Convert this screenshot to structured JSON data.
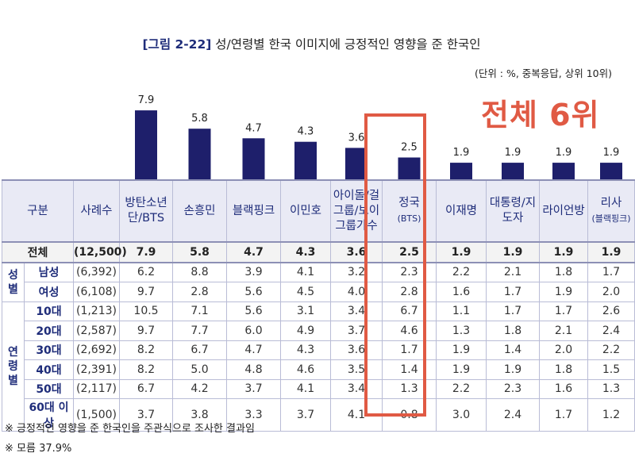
{
  "title": {
    "fig_label": "[그림 2-22]",
    "text": "성/연령별 한국 이미지에 긍정적인 영향을 준 한국인"
  },
  "unit_note": "(단위 : %, 중복응답, 상위 10위)",
  "highlight": {
    "label": "전체 6위",
    "column": "정국(BTS)",
    "color": "#e05a44"
  },
  "colors": {
    "bar": "#1e1f6b",
    "header_bg": "#e9eaf5",
    "accent_text": "#1f2d7a"
  },
  "table": {
    "headers": {
      "category": "구분",
      "cases": "사례수",
      "items": [
        {
          "label": "방탄소년단/BTS",
          "sub": ""
        },
        {
          "label": "손흥민",
          "sub": ""
        },
        {
          "label": "블랙핑크",
          "sub": ""
        },
        {
          "label": "이민호",
          "sub": ""
        },
        {
          "label": "아이돌/걸그룹/보이그룹가수",
          "sub": ""
        },
        {
          "label": "정국",
          "sub": "(BTS)"
        },
        {
          "label": "이재명",
          "sub": ""
        },
        {
          "label": "대통령/지도자",
          "sub": ""
        },
        {
          "label": "라이언방",
          "sub": ""
        },
        {
          "label": "리사",
          "sub": "(블랙핑크)"
        }
      ]
    },
    "total_row": {
      "label": "전체",
      "cases": "(12,500)",
      "values": [
        "7.9",
        "5.8",
        "4.7",
        "4.3",
        "3.6",
        "2.5",
        "1.9",
        "1.9",
        "1.9",
        "1.9"
      ]
    },
    "groups": [
      {
        "name": "성별",
        "rows": [
          {
            "label": "남성",
            "cases": "(6,392)",
            "values": [
              "6.2",
              "8.8",
              "3.9",
              "4.1",
              "3.2",
              "2.3",
              "2.2",
              "2.1",
              "1.8",
              "1.7"
            ]
          },
          {
            "label": "여성",
            "cases": "(6,108)",
            "values": [
              "9.7",
              "2.8",
              "5.6",
              "4.5",
              "4.0",
              "2.8",
              "1.6",
              "1.7",
              "1.9",
              "2.0"
            ]
          }
        ]
      },
      {
        "name": "연령별",
        "rows": [
          {
            "label": "10대",
            "cases": "(1,213)",
            "values": [
              "10.5",
              "7.1",
              "5.6",
              "3.1",
              "3.4",
              "6.7",
              "1.1",
              "1.7",
              "1.7",
              "2.6"
            ]
          },
          {
            "label": "20대",
            "cases": "(2,587)",
            "values": [
              "9.7",
              "7.7",
              "6.0",
              "4.9",
              "3.7",
              "4.6",
              "1.3",
              "1.8",
              "2.1",
              "2.4"
            ]
          },
          {
            "label": "30대",
            "cases": "(2,692)",
            "values": [
              "8.2",
              "6.7",
              "4.7",
              "4.3",
              "3.6",
              "1.7",
              "1.9",
              "1.4",
              "2.0",
              "2.2"
            ]
          },
          {
            "label": "40대",
            "cases": "(2,391)",
            "values": [
              "8.2",
              "5.0",
              "4.8",
              "4.6",
              "3.5",
              "1.4",
              "1.9",
              "1.9",
              "1.8",
              "1.5"
            ]
          },
          {
            "label": "50대",
            "cases": "(2,117)",
            "values": [
              "6.7",
              "4.2",
              "3.7",
              "4.1",
              "3.4",
              "1.3",
              "2.2",
              "2.3",
              "1.6",
              "1.3"
            ]
          },
          {
            "label": "60대 이상",
            "cases": "(1,500)",
            "values": [
              "3.7",
              "3.8",
              "3.3",
              "3.7",
              "4.1",
              "0.8",
              "3.0",
              "2.4",
              "1.7",
              "1.2"
            ]
          }
        ]
      }
    ]
  },
  "notes": [
    "※ 긍정적인 영향을 준 한국인을 주관식으로 조사한 결과임",
    "※ 모름 37.9%"
  ],
  "chart_data": {
    "type": "bar",
    "title": "성/연령별 한국 이미지에 긍정적인 영향을 준 한국인",
    "categories": [
      "방탄소년단/BTS",
      "손흥민",
      "블랙핑크",
      "이민호",
      "아이돌/걸그룹/보이그룹가수",
      "정국(BTS)",
      "이재명",
      "대통령/지도자",
      "라이언방",
      "리사(블랙핑크)"
    ],
    "values": [
      7.9,
      5.8,
      4.7,
      4.3,
      3.6,
      2.5,
      1.9,
      1.9,
      1.9,
      1.9
    ],
    "value_labels": [
      "7.9",
      "5.8",
      "4.7",
      "4.3",
      "3.6",
      "2.5",
      "1.9",
      "1.9",
      "1.9",
      "1.9"
    ],
    "xlabel": "",
    "ylabel": "%",
    "ylim": [
      0,
      8
    ],
    "grid": false,
    "series_name": "전체"
  }
}
